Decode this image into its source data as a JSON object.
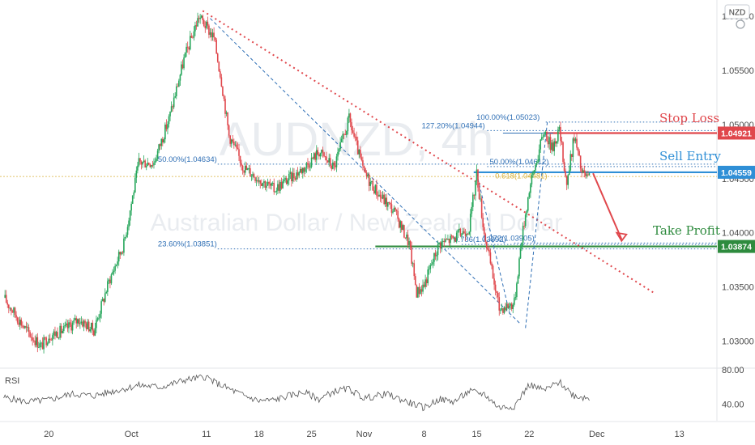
{
  "watermark": {
    "symbol": "AUDNZD, 4h",
    "name": "Australian Dollar / New Zealand Dollar"
  },
  "currency_button": "NZD",
  "rsi_label": "RSI",
  "colors": {
    "up": "#26a65b",
    "down": "#e0474c",
    "fib": "#2f6fb5",
    "stop": "#e0474c",
    "entry": "#2f8fd6",
    "profit": "#2e8b3e",
    "trend": "#e0474c",
    "current": "#d7b13a"
  },
  "chart_data": [
    {
      "type": "candlestick",
      "title": "",
      "y_axis": {
        "ticks": [
          "1.06000",
          "1.05500",
          "1.05000",
          "1.04500",
          "1.04000",
          "1.03500",
          "1.03000"
        ],
        "tick_values": [
          1.06,
          1.055,
          1.05,
          1.045,
          1.04,
          1.035,
          1.03
        ],
        "range": [
          1.0275,
          1.0615
        ]
      },
      "x_axis": {
        "labels": [
          "20",
          "Oct",
          "11",
          "18",
          "25",
          "Nov",
          "8",
          "15",
          "22",
          "Dec",
          "13"
        ],
        "label_day_index": [
          0,
          11,
          21,
          28,
          35,
          42,
          50,
          57,
          64,
          73,
          84
        ],
        "range_days": [
          -6.5,
          89
        ]
      },
      "price_tags": [
        {
          "label": "1.04921",
          "value": 1.04921,
          "kind": "stop"
        },
        {
          "label": "1.04559",
          "value": 1.04559,
          "kind": "entry"
        },
        {
          "label": "1.03874",
          "value": 1.03874,
          "kind": "profit"
        }
      ],
      "current_price": 1.0452,
      "annotations": {
        "stop_loss": "Stop Loss",
        "sell_entry": "Sell Entry",
        "take_profit": "Take Profit"
      },
      "fib_labels": [
        {
          "text": "100.00%(1.05023)",
          "value": 1.05023
        },
        {
          "text": "127.20%(1.04944)",
          "value": 1.04944
        },
        {
          "text": "50.00%(1.04634)",
          "value": 1.04634
        },
        {
          "text": "50.00%(1.04612)",
          "value": 1.04612
        },
        {
          "text": "0.618(1.04481)",
          "value": 1.04481
        },
        {
          "text": "23.60%(1.03851)",
          "value": 1.03851
        },
        {
          "text": "0.786(1.03892)",
          "value": 1.03892
        },
        {
          "text": "1.272(1.03905)",
          "value": 1.03905
        }
      ],
      "ohlc_anchors": {
        "day_index": [
          -6,
          -3,
          -1,
          0,
          2,
          4,
          6,
          8,
          10,
          12,
          14,
          16,
          18,
          20,
          22,
          23,
          24,
          26,
          28,
          30,
          32,
          34,
          36,
          38,
          40,
          41,
          42,
          44,
          46,
          48,
          49,
          50,
          52,
          54,
          56,
          57,
          58,
          60,
          62,
          63,
          64,
          66,
          67,
          68,
          69,
          70,
          71,
          72
        ],
        "close": [
          1.034,
          1.031,
          1.0295,
          1.0305,
          1.031,
          1.032,
          1.031,
          1.0355,
          1.039,
          1.0465,
          1.0465,
          1.0505,
          1.056,
          1.06,
          1.058,
          1.054,
          1.049,
          1.046,
          1.045,
          1.044,
          1.045,
          1.046,
          1.0475,
          1.046,
          1.0505,
          1.048,
          1.0455,
          1.0435,
          1.042,
          1.039,
          1.0345,
          1.0352,
          1.039,
          1.0395,
          1.0405,
          1.0455,
          1.04,
          1.033,
          1.0335,
          1.0395,
          1.044,
          1.0495,
          1.0478,
          1.0495,
          1.0445,
          1.049,
          1.0455,
          1.045
        ]
      }
    },
    {
      "type": "line",
      "title": "RSI",
      "y_axis": {
        "ticks": [
          "80.00",
          "40.00"
        ],
        "tick_values": [
          80,
          40
        ],
        "range": [
          20,
          82
        ]
      },
      "series": [
        {
          "day_index": [
            -6,
            -3,
            0,
            3,
            6,
            9,
            12,
            15,
            18,
            21,
            22,
            24,
            26,
            28,
            30,
            32,
            34,
            36,
            38,
            40,
            42,
            45,
            48,
            50,
            52,
            54,
            56,
            58,
            60,
            62,
            64,
            66,
            68,
            70,
            72
          ],
          "values": [
            48,
            43,
            45,
            52,
            50,
            56,
            62,
            60,
            68,
            72,
            66,
            58,
            50,
            44,
            45,
            50,
            54,
            46,
            55,
            58,
            47,
            52,
            42,
            36,
            46,
            43,
            55,
            52,
            36,
            38,
            63,
            56,
            66,
            50,
            47
          ]
        }
      ]
    }
  ]
}
